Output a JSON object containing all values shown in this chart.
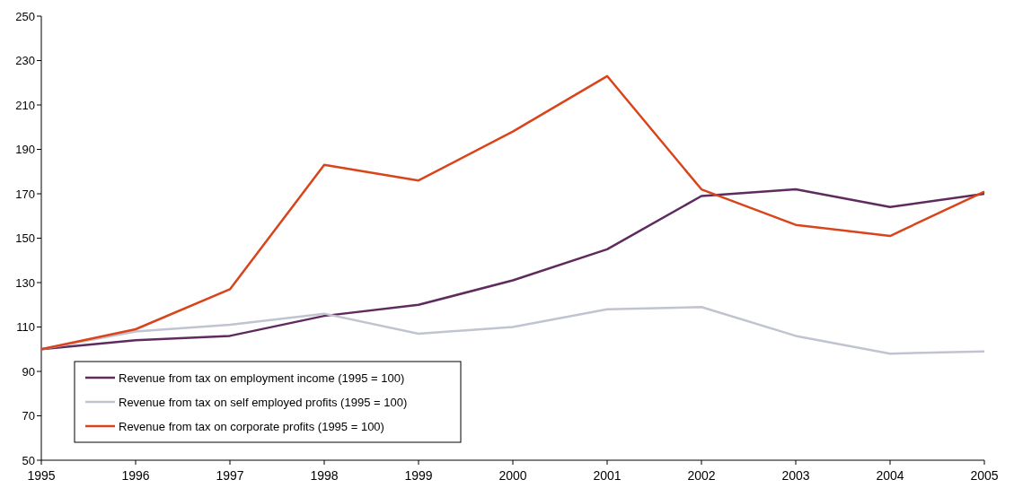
{
  "chart_data": {
    "type": "line",
    "x": [
      1995,
      1996,
      1997,
      1998,
      1999,
      2000,
      2001,
      2002,
      2003,
      2004,
      2005
    ],
    "xlim": [
      1995,
      2005
    ],
    "xticks": [
      1995,
      1996,
      1997,
      1998,
      1999,
      2000,
      2001,
      2002,
      2003,
      2004,
      2005
    ],
    "ylim": [
      50,
      250
    ],
    "yticks": [
      50,
      70,
      90,
      110,
      130,
      150,
      170,
      190,
      210,
      230,
      250
    ],
    "grid": false,
    "legend": "bottom left",
    "marker": "none",
    "line_style": "solid",
    "series": [
      {
        "name": "Revenue from tax on employment income (1995 = 100)",
        "color": "#5f2b5f",
        "values": [
          100,
          104,
          106,
          115,
          120,
          131,
          145,
          169,
          172,
          164,
          170
        ]
      },
      {
        "name": "Revenue from tax on self employed profits (1995 = 100)",
        "color": "#c0c4d0",
        "values": [
          100,
          108,
          111,
          116,
          107,
          110,
          118,
          119,
          106,
          98,
          99
        ]
      },
      {
        "name": "Revenue from tax on corporate profits (1995 = 100)",
        "color": "#d9441a",
        "values": [
          100,
          109,
          127,
          183,
          176,
          198,
          223,
          172,
          156,
          151,
          171
        ]
      }
    ]
  }
}
